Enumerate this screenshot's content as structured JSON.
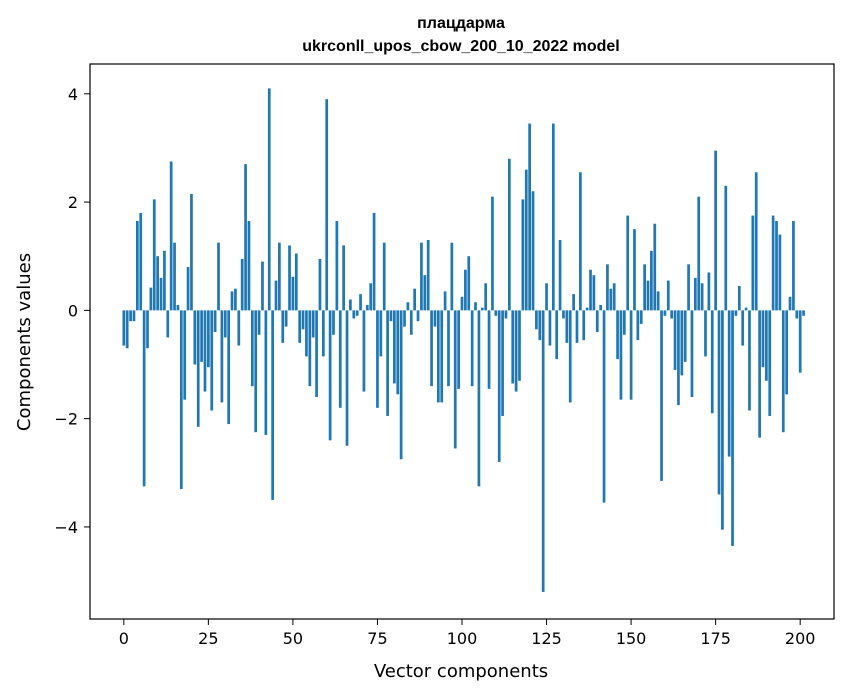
{
  "chart_data": {
    "type": "bar",
    "title": "плацдарма",
    "subtitle": "ukrconll_upos_cbow_200_10_2022 model",
    "xlabel": "Vector components",
    "ylabel": "Components values",
    "xlim": [
      -10,
      210
    ],
    "ylim": [
      -5.7,
      4.55
    ],
    "xticks": [
      0,
      25,
      50,
      75,
      100,
      125,
      150,
      175,
      200
    ],
    "xtick_labels": [
      "0",
      "25",
      "50",
      "75",
      "100",
      "125",
      "150",
      "175",
      "200"
    ],
    "yticks": [
      -4,
      -2,
      0,
      2,
      4
    ],
    "ytick_labels": [
      "−4",
      "−2",
      "0",
      "2",
      "4"
    ],
    "bar_color": "#1f77b4",
    "grid": false,
    "values": [
      -0.65,
      -0.7,
      -0.2,
      -0.2,
      1.65,
      1.8,
      -3.25,
      -0.7,
      0.42,
      2.05,
      1.0,
      0.6,
      1.1,
      -0.5,
      2.75,
      1.25,
      0.1,
      -3.3,
      -1.65,
      0.8,
      2.15,
      -1.0,
      -2.15,
      -0.95,
      -1.5,
      -1.05,
      -1.85,
      -0.4,
      1.25,
      -1.7,
      -0.5,
      -2.1,
      0.35,
      0.4,
      -0.65,
      0.95,
      2.7,
      1.65,
      -1.4,
      -2.25,
      -0.45,
      0.9,
      -2.3,
      4.1,
      -3.5,
      0.55,
      1.25,
      -0.6,
      -0.3,
      1.2,
      0.62,
      1.05,
      -0.6,
      -0.35,
      -0.85,
      -1.4,
      -0.5,
      -1.6,
      0.95,
      -0.85,
      3.9,
      -2.4,
      -0.45,
      1.65,
      -1.8,
      1.2,
      -2.5,
      0.2,
      -0.15,
      -0.1,
      0.3,
      -1.5,
      0.1,
      0.5,
      1.8,
      -1.8,
      -0.85,
      1.25,
      -1.95,
      -0.2,
      -1.35,
      -1.55,
      -2.75,
      -0.3,
      0.15,
      -0.45,
      0.4,
      -0.2,
      1.25,
      0.65,
      1.3,
      -1.4,
      -0.3,
      -1.7,
      -1.7,
      0.35,
      -1.4,
      1.25,
      -2.55,
      -1.45,
      0.25,
      0.75,
      1.0,
      -1.4,
      0.15,
      -3.25,
      0.05,
      0.5,
      -1.45,
      2.1,
      -0.1,
      -2.8,
      -1.95,
      -0.15,
      2.8,
      -1.35,
      -1.5,
      -1.3,
      2.05,
      2.6,
      3.45,
      2.2,
      -0.35,
      -0.55,
      -5.2,
      0.5,
      -0.65,
      3.45,
      -0.9,
      1.3,
      -0.15,
      -0.6,
      -1.7,
      0.3,
      -0.6,
      2.55,
      -0.55,
      0.05,
      0.75,
      0.65,
      -0.4,
      0.1,
      -3.55,
      0.85,
      0.4,
      0.5,
      -0.9,
      -1.65,
      -0.45,
      1.75,
      -1.65,
      1.5,
      -0.55,
      -0.25,
      0.85,
      0.55,
      1.1,
      1.6,
      0.35,
      -3.15,
      -0.1,
      0.55,
      -0.15,
      -1.1,
      -1.75,
      -1.2,
      -0.95,
      0.85,
      -1.6,
      0.6,
      2.1,
      0.5,
      -0.85,
      0.7,
      -1.9,
      2.95,
      -3.4,
      -4.05,
      2.3,
      -2.7,
      -4.35,
      -0.1,
      0.45,
      -0.65,
      0.05,
      -1.85,
      1.75,
      2.55,
      -2.35,
      -1.05,
      -1.3,
      -1.95,
      1.75,
      1.65,
      1.4,
      -2.25,
      -1.55,
      0.25,
      1.65,
      -0.15,
      -1.15,
      -0.1
    ]
  }
}
